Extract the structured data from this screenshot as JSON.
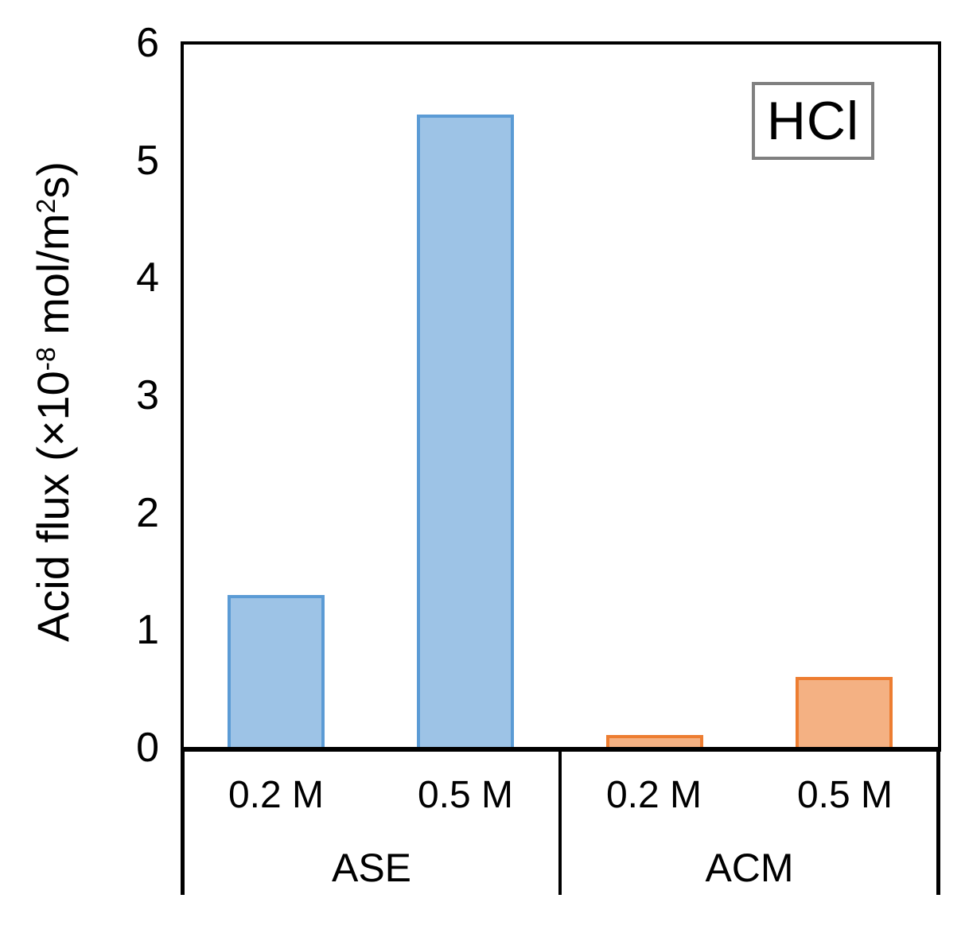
{
  "chart_data": {
    "type": "bar",
    "title": "",
    "xlabel": "",
    "ylabel": "Acid flux (×10⁻⁸ mol/m²s)",
    "ylabel_parts": {
      "p1": "Acid flux (×10",
      "sup1": "-8",
      "p2": " mol/m",
      "sup2": "2",
      "p3": "s)"
    },
    "annotation": "HCl",
    "annotation_border_color": "#808080",
    "ylim": [
      0,
      6
    ],
    "yticks": [
      "0",
      "1",
      "2",
      "3",
      "4",
      "5",
      "6"
    ],
    "grid": false,
    "legend": "none",
    "axis_color": "#000000",
    "groups": [
      {
        "label": "ASE",
        "categories": [
          "0.2 M",
          "0.5 M"
        ],
        "values": [
          1.3,
          5.4
        ],
        "fill": "#9DC3E6",
        "border": "#5B9BD5"
      },
      {
        "label": "ACM",
        "categories": [
          "0.2 M",
          "0.5 M"
        ],
        "values": [
          0.1,
          0.6
        ],
        "fill": "#F4B183",
        "border": "#ED7D31"
      }
    ]
  }
}
